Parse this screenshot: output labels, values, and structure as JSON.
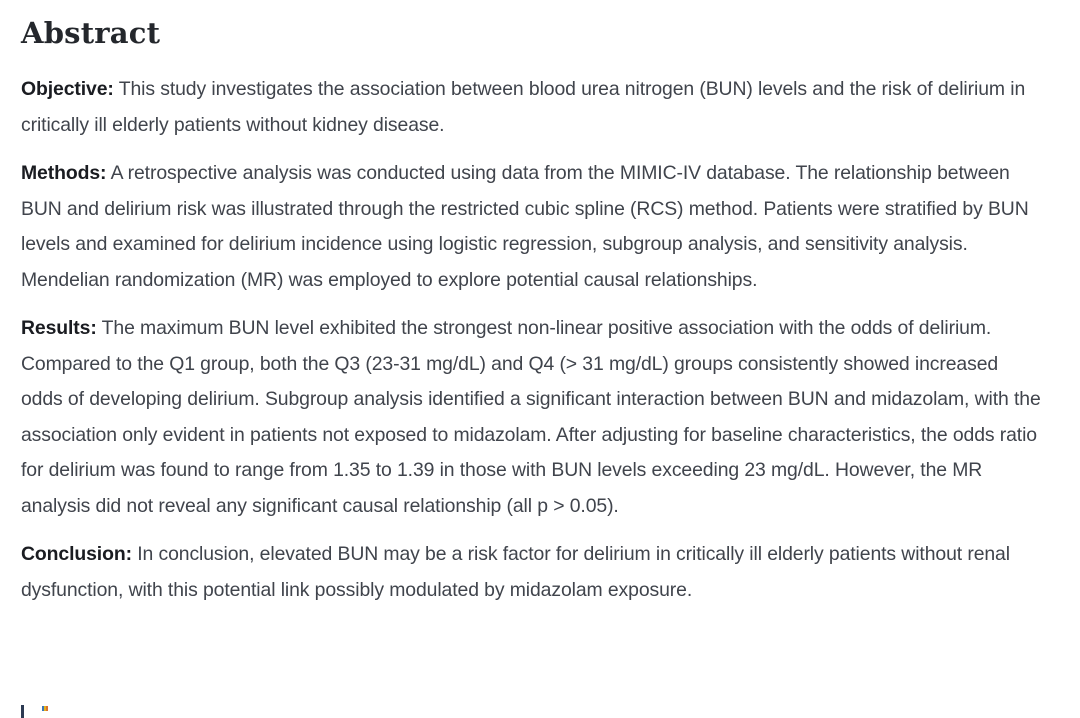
{
  "abstract": {
    "heading": "Abstract",
    "paragraphs": [
      {
        "label": "Objective:",
        "text": " This study investigates the association between blood urea nitrogen (BUN) levels and the risk of delirium in critically ill elderly patients without kidney disease."
      },
      {
        "label": "Methods:",
        "text": " A retrospective analysis was conducted using data from the MIMIC-IV database. The relationship between BUN and delirium risk was illustrated through the restricted cubic spline (RCS) method. Patients were stratified by BUN levels and examined for delirium incidence using logistic regression, subgroup analysis, and sensitivity analysis. Mendelian randomization (MR) was employed to explore potential causal relationships."
      },
      {
        "label": "Results:",
        "text": " The maximum BUN level exhibited the strongest non-linear positive association with the odds of delirium. Compared to the Q1 group, both the Q3 (23-31 mg/dL) and Q4 (> 31 mg/dL) groups consistently showed increased odds of developing delirium. Subgroup analysis identified a significant interaction between BUN and midazolam, with the association only evident in patients not exposed to midazolam. After adjusting for baseline characteristics, the odds ratio for delirium was found to range from 1.35 to 1.39 in those with BUN levels exceeding 23 mg/dL. However, the MR analysis did not reveal any significant causal relationship (all p > 0.05)."
      },
      {
        "label": "Conclusion:",
        "text": " In conclusion, elevated BUN may be a risk factor for delirium in critically ill elderly patients without renal dysfunction, with this potential link possibly modulated by midazolam exposure."
      }
    ]
  },
  "colors": {
    "background": "#ffffff",
    "heading_text": "#24272c",
    "body_text": "#40444c",
    "label_text": "#1a1c21",
    "cutoff_fragment_dark": "#2c3a52",
    "cutoff_fragment_accents": [
      "#3a76b8",
      "#e3b41f",
      "#d9712d"
    ]
  }
}
